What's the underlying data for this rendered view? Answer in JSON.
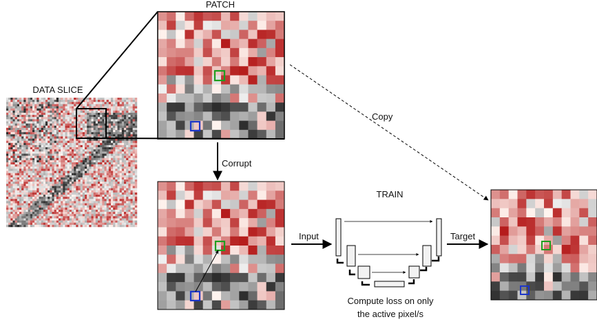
{
  "labels": {
    "patch": "PATCH",
    "data_slice": "DATA SLICE",
    "copy": "Copy",
    "corrupt": "Corrupt",
    "train": "TRAIN",
    "input": "Input",
    "target": "Target",
    "loss_line1": "Compute loss on only",
    "loss_line2": "the active pixel/s"
  },
  "colors": {
    "active_pixel": "#1f9e1f",
    "neighbor_pixel": "#1d36c9",
    "stroke": "#000000"
  }
}
